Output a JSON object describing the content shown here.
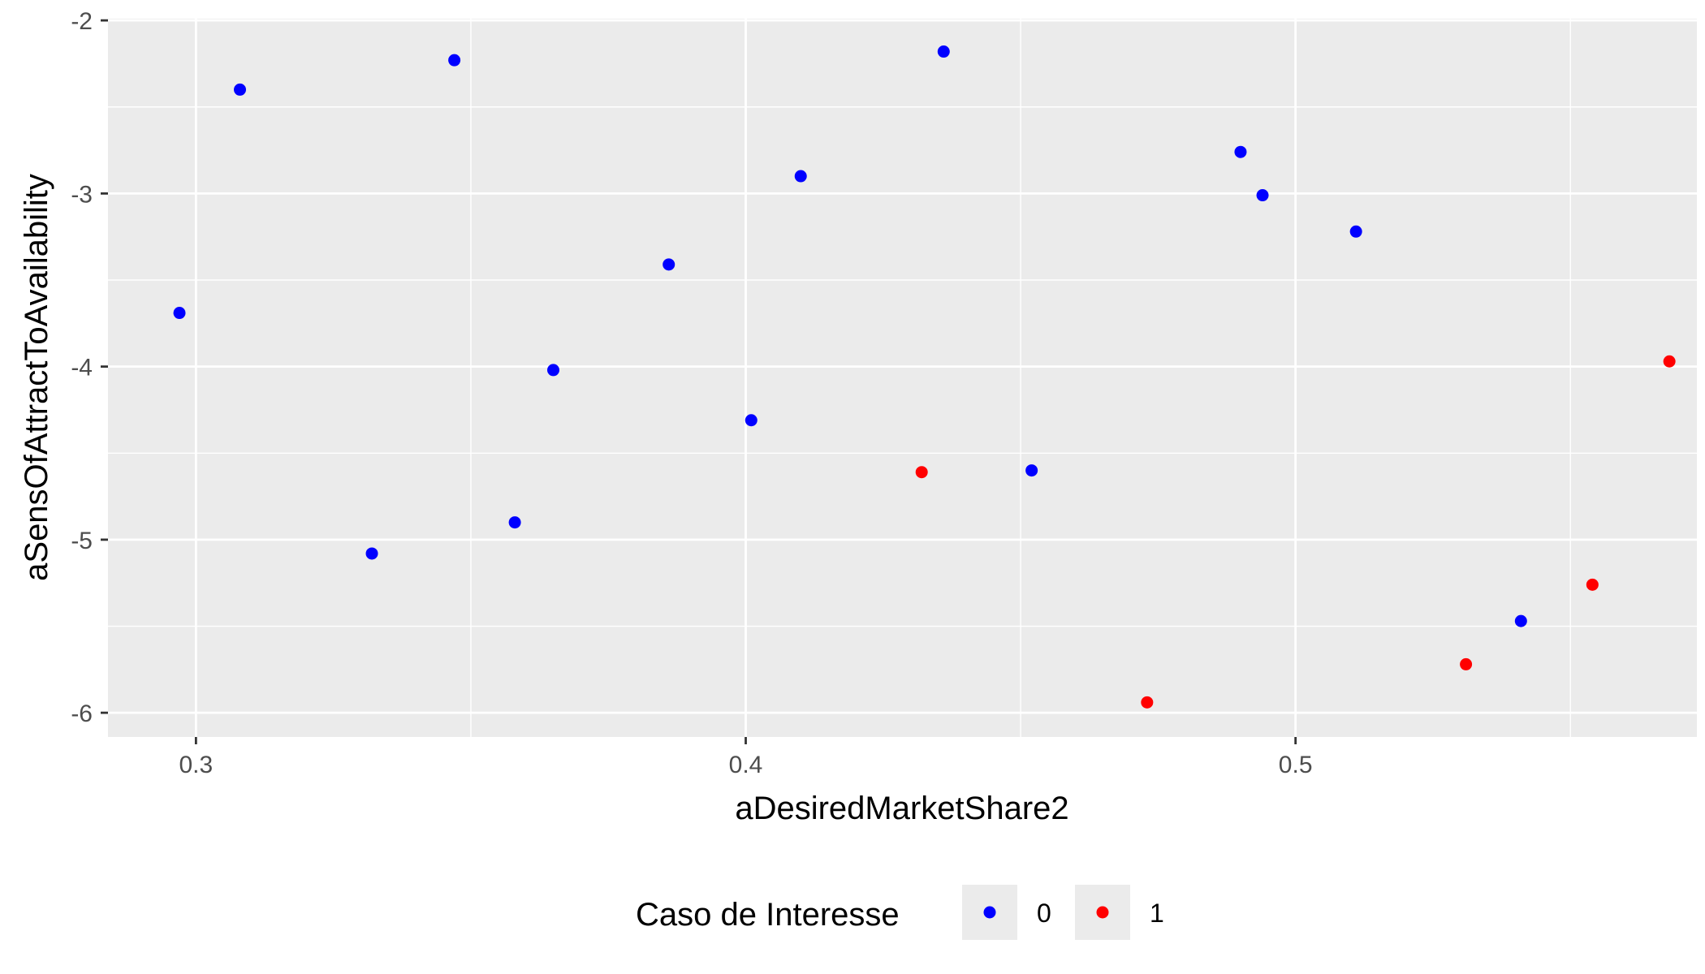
{
  "chart_data": {
    "type": "scatter",
    "title": "",
    "xlabel": "aDesiredMarketShare2",
    "ylabel": "aSensOfAttractToAvailability",
    "xlim": [
      0.284,
      0.573
    ],
    "ylim": [
      -6.14,
      -1.99
    ],
    "x_ticks": [
      0.3,
      0.4,
      0.5
    ],
    "x_tick_labels": [
      "0.3",
      "0.4",
      "0.5"
    ],
    "y_ticks": [
      -6,
      -5,
      -4,
      -3,
      -2
    ],
    "y_tick_labels": [
      "-6",
      "-5",
      "-4",
      "-3",
      "-2"
    ],
    "grid": true,
    "background": "#ebebeb",
    "legend": {
      "title": "Caso de Interesse",
      "placement": "bottom"
    },
    "series": [
      {
        "name": "0",
        "color": "#0000ff",
        "points": [
          {
            "x": 0.297,
            "y": -3.69
          },
          {
            "x": 0.308,
            "y": -2.4
          },
          {
            "x": 0.332,
            "y": -5.08
          },
          {
            "x": 0.347,
            "y": -2.23
          },
          {
            "x": 0.358,
            "y": -4.9
          },
          {
            "x": 0.365,
            "y": -4.02
          },
          {
            "x": 0.386,
            "y": -3.41
          },
          {
            "x": 0.401,
            "y": -4.31
          },
          {
            "x": 0.41,
            "y": -2.9
          },
          {
            "x": 0.436,
            "y": -2.18
          },
          {
            "x": 0.452,
            "y": -4.6
          },
          {
            "x": 0.49,
            "y": -2.76
          },
          {
            "x": 0.494,
            "y": -3.01
          },
          {
            "x": 0.511,
            "y": -3.22
          },
          {
            "x": 0.541,
            "y": -5.47
          }
        ]
      },
      {
        "name": "1",
        "color": "#ff0000",
        "points": [
          {
            "x": 0.432,
            "y": -4.61
          },
          {
            "x": 0.473,
            "y": -5.94
          },
          {
            "x": 0.531,
            "y": -5.72
          },
          {
            "x": 0.554,
            "y": -5.26
          },
          {
            "x": 0.568,
            "y": -3.97
          }
        ]
      }
    ]
  }
}
